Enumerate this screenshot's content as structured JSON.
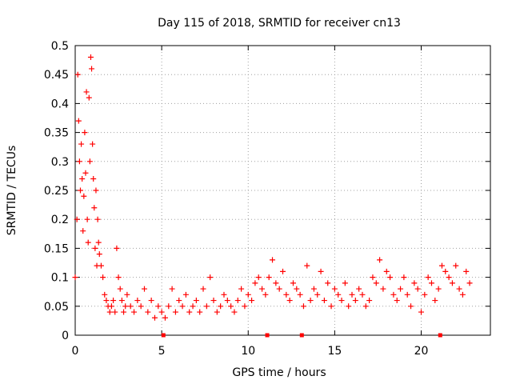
{
  "chart_data": {
    "type": "scatter",
    "title": "Day 115 of 2018, SRMTID for receiver cn13",
    "xlabel": "GPS time / hours",
    "ylabel": "SRMTID / TECUs",
    "xlim": [
      0,
      24
    ],
    "ylim": [
      0,
      0.5
    ],
    "x_ticks": [
      0,
      5,
      10,
      15,
      20
    ],
    "x_tick_labels": [
      "0",
      "5",
      "10",
      "15",
      "20"
    ],
    "y_ticks": [
      0,
      0.05,
      0.1,
      0.15,
      0.2,
      0.25,
      0.3,
      0.35,
      0.4,
      0.45,
      0.5
    ],
    "y_tick_labels": [
      "0",
      "0.05",
      "0.1",
      "0.15",
      "0.2",
      "0.25",
      "0.3",
      "0.35",
      "0.4",
      "0.45",
      "0.5"
    ],
    "grid": true,
    "marker": "+",
    "color": "#ff0000",
    "baseline_markers_x": [
      5.1,
      11.1,
      13.1,
      21.1
    ],
    "series": [
      {
        "name": "SRMTID",
        "x": [
          0.0,
          0.1,
          0.15,
          0.2,
          0.25,
          0.3,
          0.35,
          0.4,
          0.45,
          0.5,
          0.55,
          0.6,
          0.65,
          0.7,
          0.75,
          0.8,
          0.85,
          0.9,
          0.95,
          1.0,
          1.05,
          1.1,
          1.15,
          1.2,
          1.25,
          1.3,
          1.35,
          1.4,
          1.5,
          1.6,
          1.7,
          1.8,
          1.9,
          2.0,
          2.1,
          2.2,
          2.3,
          2.4,
          2.5,
          2.6,
          2.7,
          2.8,
          2.9,
          3.0,
          3.2,
          3.4,
          3.6,
          3.8,
          4.0,
          4.2,
          4.4,
          4.6,
          4.8,
          5.0,
          5.2,
          5.4,
          5.6,
          5.8,
          6.0,
          6.2,
          6.4,
          6.6,
          6.8,
          7.0,
          7.2,
          7.4,
          7.6,
          7.8,
          8.0,
          8.2,
          8.4,
          8.6,
          8.8,
          9.0,
          9.2,
          9.4,
          9.6,
          9.8,
          10.0,
          10.2,
          10.4,
          10.6,
          10.8,
          11.0,
          11.2,
          11.4,
          11.6,
          11.8,
          12.0,
          12.2,
          12.4,
          12.6,
          12.8,
          13.0,
          13.2,
          13.4,
          13.6,
          13.8,
          14.0,
          14.2,
          14.4,
          14.6,
          14.8,
          15.0,
          15.2,
          15.4,
          15.6,
          15.8,
          16.0,
          16.2,
          16.4,
          16.6,
          16.8,
          17.0,
          17.2,
          17.4,
          17.6,
          17.8,
          18.0,
          18.2,
          18.4,
          18.6,
          18.8,
          19.0,
          19.2,
          19.4,
          19.6,
          19.8,
          20.0,
          20.2,
          20.4,
          20.6,
          20.8,
          21.0,
          21.2,
          21.4,
          21.6,
          21.8,
          22.0,
          22.2,
          22.4,
          22.6,
          22.8
        ],
        "y": [
          0.1,
          0.2,
          0.45,
          0.37,
          0.3,
          0.25,
          0.33,
          0.27,
          0.18,
          0.24,
          0.35,
          0.28,
          0.42,
          0.2,
          0.16,
          0.41,
          0.3,
          0.48,
          0.46,
          0.33,
          0.27,
          0.22,
          0.15,
          0.25,
          0.12,
          0.2,
          0.16,
          0.14,
          0.12,
          0.1,
          0.07,
          0.06,
          0.05,
          0.04,
          0.05,
          0.06,
          0.04,
          0.15,
          0.1,
          0.08,
          0.06,
          0.04,
          0.05,
          0.07,
          0.05,
          0.04,
          0.06,
          0.05,
          0.08,
          0.04,
          0.06,
          0.03,
          0.05,
          0.04,
          0.03,
          0.05,
          0.08,
          0.04,
          0.06,
          0.05,
          0.07,
          0.04,
          0.05,
          0.06,
          0.04,
          0.08,
          0.05,
          0.1,
          0.06,
          0.04,
          0.05,
          0.07,
          0.06,
          0.05,
          0.04,
          0.06,
          0.08,
          0.05,
          0.07,
          0.06,
          0.09,
          0.1,
          0.08,
          0.07,
          0.1,
          0.13,
          0.09,
          0.08,
          0.11,
          0.07,
          0.06,
          0.09,
          0.08,
          0.07,
          0.05,
          0.12,
          0.06,
          0.08,
          0.07,
          0.11,
          0.06,
          0.09,
          0.05,
          0.08,
          0.07,
          0.06,
          0.09,
          0.05,
          0.07,
          0.06,
          0.08,
          0.07,
          0.05,
          0.06,
          0.1,
          0.09,
          0.13,
          0.08,
          0.11,
          0.1,
          0.07,
          0.06,
          0.08,
          0.1,
          0.07,
          0.05,
          0.09,
          0.08,
          0.04,
          0.07,
          0.1,
          0.09,
          0.06,
          0.08,
          0.12,
          0.11,
          0.1,
          0.09,
          0.12,
          0.08,
          0.07,
          0.11,
          0.09
        ]
      }
    ]
  }
}
